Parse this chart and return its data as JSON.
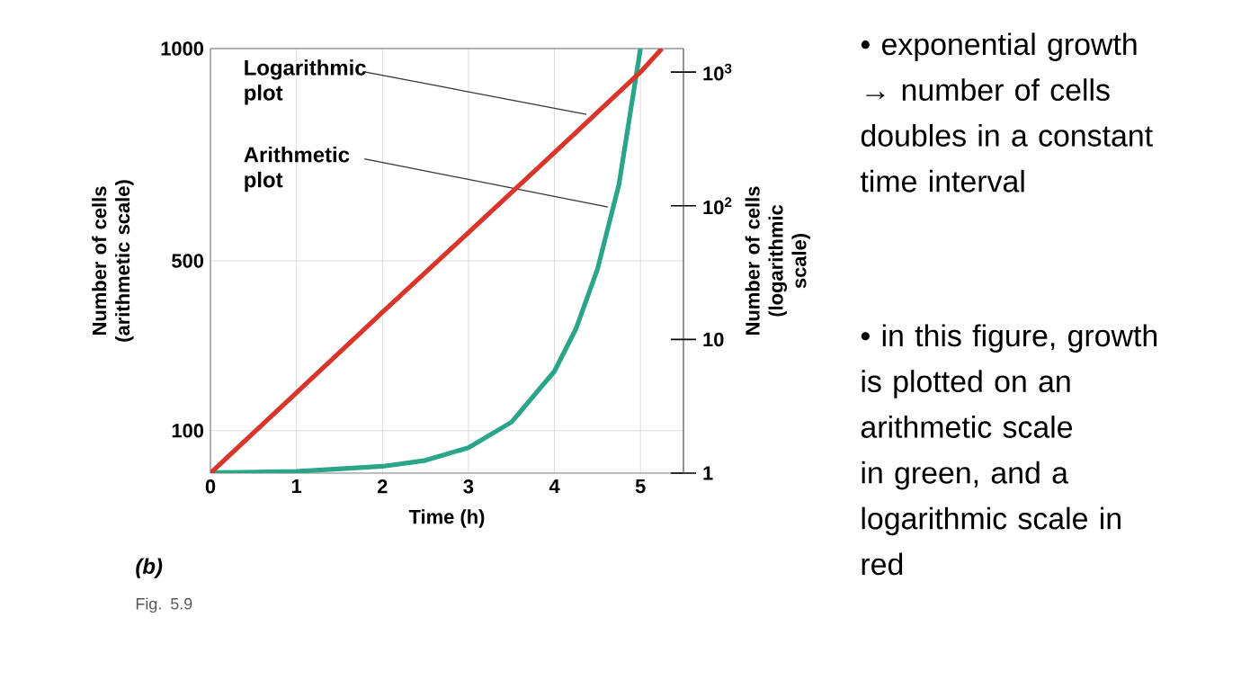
{
  "chart_data": {
    "type": "line",
    "xlabel": "Time (h)",
    "ylabel": "Number of cells (arithmetic scale)",
    "y2label": "Number of cells (logarithmic scale)",
    "xlim": [
      0,
      5.5
    ],
    "xticks": [
      0,
      1,
      2,
      3,
      4,
      5
    ],
    "ylim": [
      0,
      1000
    ],
    "yticks": [
      100,
      500,
      1000
    ],
    "y2lim": [
      1,
      1500
    ],
    "y2ticks": [
      1,
      10,
      {
        "value": 100,
        "label": "10$^{2}$"
      },
      {
        "value": 1000,
        "label": "10$^{3}$"
      }
    ],
    "log": "y2",
    "grid": true,
    "marker": "none",
    "line_style": "solid",
    "series": [
      {
        "color": "#2aa58a",
        "x": [
          0,
          1,
          2,
          2.5,
          3,
          3.5,
          4,
          4.25,
          4.5,
          4.75,
          5
        ],
        "values": [
          1,
          4,
          16,
          30,
          60,
          120,
          240,
          340,
          480,
          680,
          1000
        ]
      },
      {
        "color": "#d9352b",
        "axis": "y2",
        "x": [
          0,
          1,
          2,
          3,
          4,
          5,
          5.25
        ],
        "values": [
          1,
          4,
          16,
          63,
          250,
          1000,
          1500
        ]
      }
    ],
    "annotations": [
      {
        "text": "Logarithmic plot",
        "x": 4.37,
        "y": 845
      },
      {
        "text": "Arithmetic plot",
        "x": 4.62,
        "y": 627
      },
      "(b)",
      "Fig. 5.9",
      "• exponential growth → number of cells doubles in a constant time interval",
      "• in this figure, growth is plotted on an arithmetic scale in green, and a logarithmic scale in red"
    ]
  }
}
